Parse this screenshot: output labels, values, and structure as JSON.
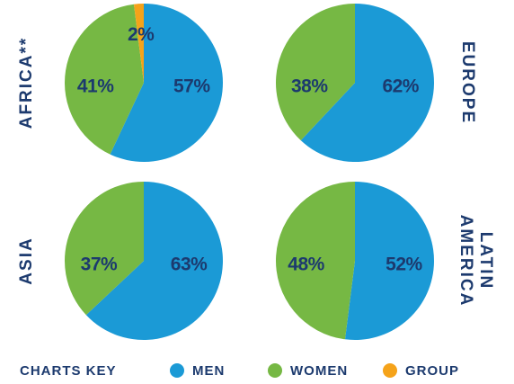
{
  "chart_data": [
    {
      "type": "pie",
      "title_lines": [
        "AFRICA**"
      ],
      "categories": [
        "MEN",
        "WOMEN",
        "GROUP"
      ],
      "values": [
        57,
        41,
        2
      ],
      "value_labels": [
        "57%",
        "41%",
        "2%"
      ],
      "colors": [
        "#1b9ad6",
        "#76b844",
        "#f5a31a"
      ]
    },
    {
      "type": "pie",
      "title_lines": [
        "EUROPE"
      ],
      "categories": [
        "MEN",
        "WOMEN"
      ],
      "values": [
        62,
        38
      ],
      "value_labels": [
        "62%",
        "38%"
      ],
      "colors": [
        "#1b9ad6",
        "#76b844"
      ]
    },
    {
      "type": "pie",
      "title_lines": [
        "ASIA"
      ],
      "categories": [
        "MEN",
        "WOMEN"
      ],
      "values": [
        63,
        37
      ],
      "value_labels": [
        "63%",
        "37%"
      ],
      "colors": [
        "#1b9ad6",
        "#76b844"
      ]
    },
    {
      "type": "pie",
      "title_lines": [
        "LATIN",
        "AMERICA"
      ],
      "categories": [
        "MEN",
        "WOMEN"
      ],
      "values": [
        52,
        48
      ],
      "value_labels": [
        "52%",
        "48%"
      ],
      "colors": [
        "#1b9ad6",
        "#76b844"
      ]
    }
  ],
  "legend": {
    "title": "CHARTS KEY",
    "items": [
      {
        "name": "MEN",
        "color": "#1b9ad6"
      },
      {
        "name": "WOMEN",
        "color": "#76b844"
      },
      {
        "name": "GROUP",
        "color": "#f5a31a"
      }
    ]
  }
}
